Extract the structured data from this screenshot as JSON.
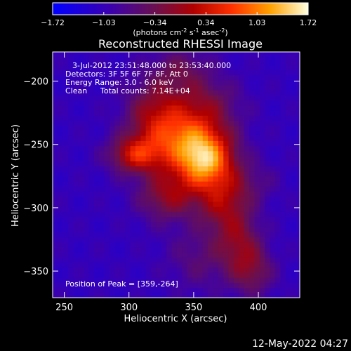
{
  "chart_data": {
    "type": "heatmap",
    "title": "Reconstructed RHESSI Image",
    "xlabel": "Heliocentric X (arcsec)",
    "ylabel": "Heliocentric Y (arcsec)",
    "xlim": [
      241,
      432
    ],
    "ylim": [
      -371,
      -177
    ],
    "xticks": [
      250,
      300,
      350,
      400
    ],
    "yticks": [
      -200,
      -250,
      -300,
      -350
    ],
    "colorbar": {
      "ticks": [
        "-1.72",
        "-1.03",
        "-0.34",
        "0.34",
        "1.03",
        "1.72"
      ],
      "range": [
        -1.72,
        1.72
      ],
      "units_label": "(photons cm",
      "units_exp1": "-2",
      "units_s": " s",
      "units_exp2": "-1",
      "units_asec": " asec",
      "units_exp3": "-2",
      "units_close": ")"
    },
    "annotations": {
      "time_range": "3-Jul-2012 23:51:48.000 to 23:53:40.000",
      "detectors": "Detectors: 3F 5F 6F 7F 8F, Att 0",
      "energy": "Energy Range: 3.0 - 6.0 keV",
      "method": "Clean",
      "total_counts": "Total counts: 7.14E+04",
      "peak": "Position of Peak = [359,-264]"
    },
    "peak": [
      359,
      -264
    ],
    "sources": [
      {
        "x": 345,
        "y": -245,
        "amp": 1.55,
        "sx": 22,
        "sy": 18
      },
      {
        "x": 359,
        "y": -264,
        "amp": 1.75,
        "sx": 15,
        "sy": 15
      },
      {
        "x": 305,
        "y": -258,
        "amp": 1.25,
        "sx": 14,
        "sy": 10
      },
      {
        "x": 320,
        "y": -225,
        "amp": 0.85,
        "sx": 16,
        "sy": 20
      },
      {
        "x": 360,
        "y": -215,
        "amp": 0.55,
        "sx": 18,
        "sy": 14
      },
      {
        "x": 330,
        "y": -290,
        "amp": 0.95,
        "sx": 16,
        "sy": 14
      },
      {
        "x": 372,
        "y": -295,
        "amp": 0.95,
        "sx": 14,
        "sy": 16
      },
      {
        "x": 385,
        "y": -325,
        "amp": 0.75,
        "sx": 12,
        "sy": 16
      },
      {
        "x": 395,
        "y": -350,
        "amp": 0.75,
        "sx": 12,
        "sy": 14
      },
      {
        "x": 355,
        "y": -340,
        "amp": 0.45,
        "sx": 18,
        "sy": 18
      },
      {
        "x": 340,
        "y": -190,
        "amp": 0.55,
        "sx": 16,
        "sy": 12
      },
      {
        "x": 395,
        "y": -280,
        "amp": 0.35,
        "sx": 14,
        "sy": 12
      }
    ],
    "background": -1.05
  },
  "footer": {
    "date": "12-May-2022 04:27"
  }
}
